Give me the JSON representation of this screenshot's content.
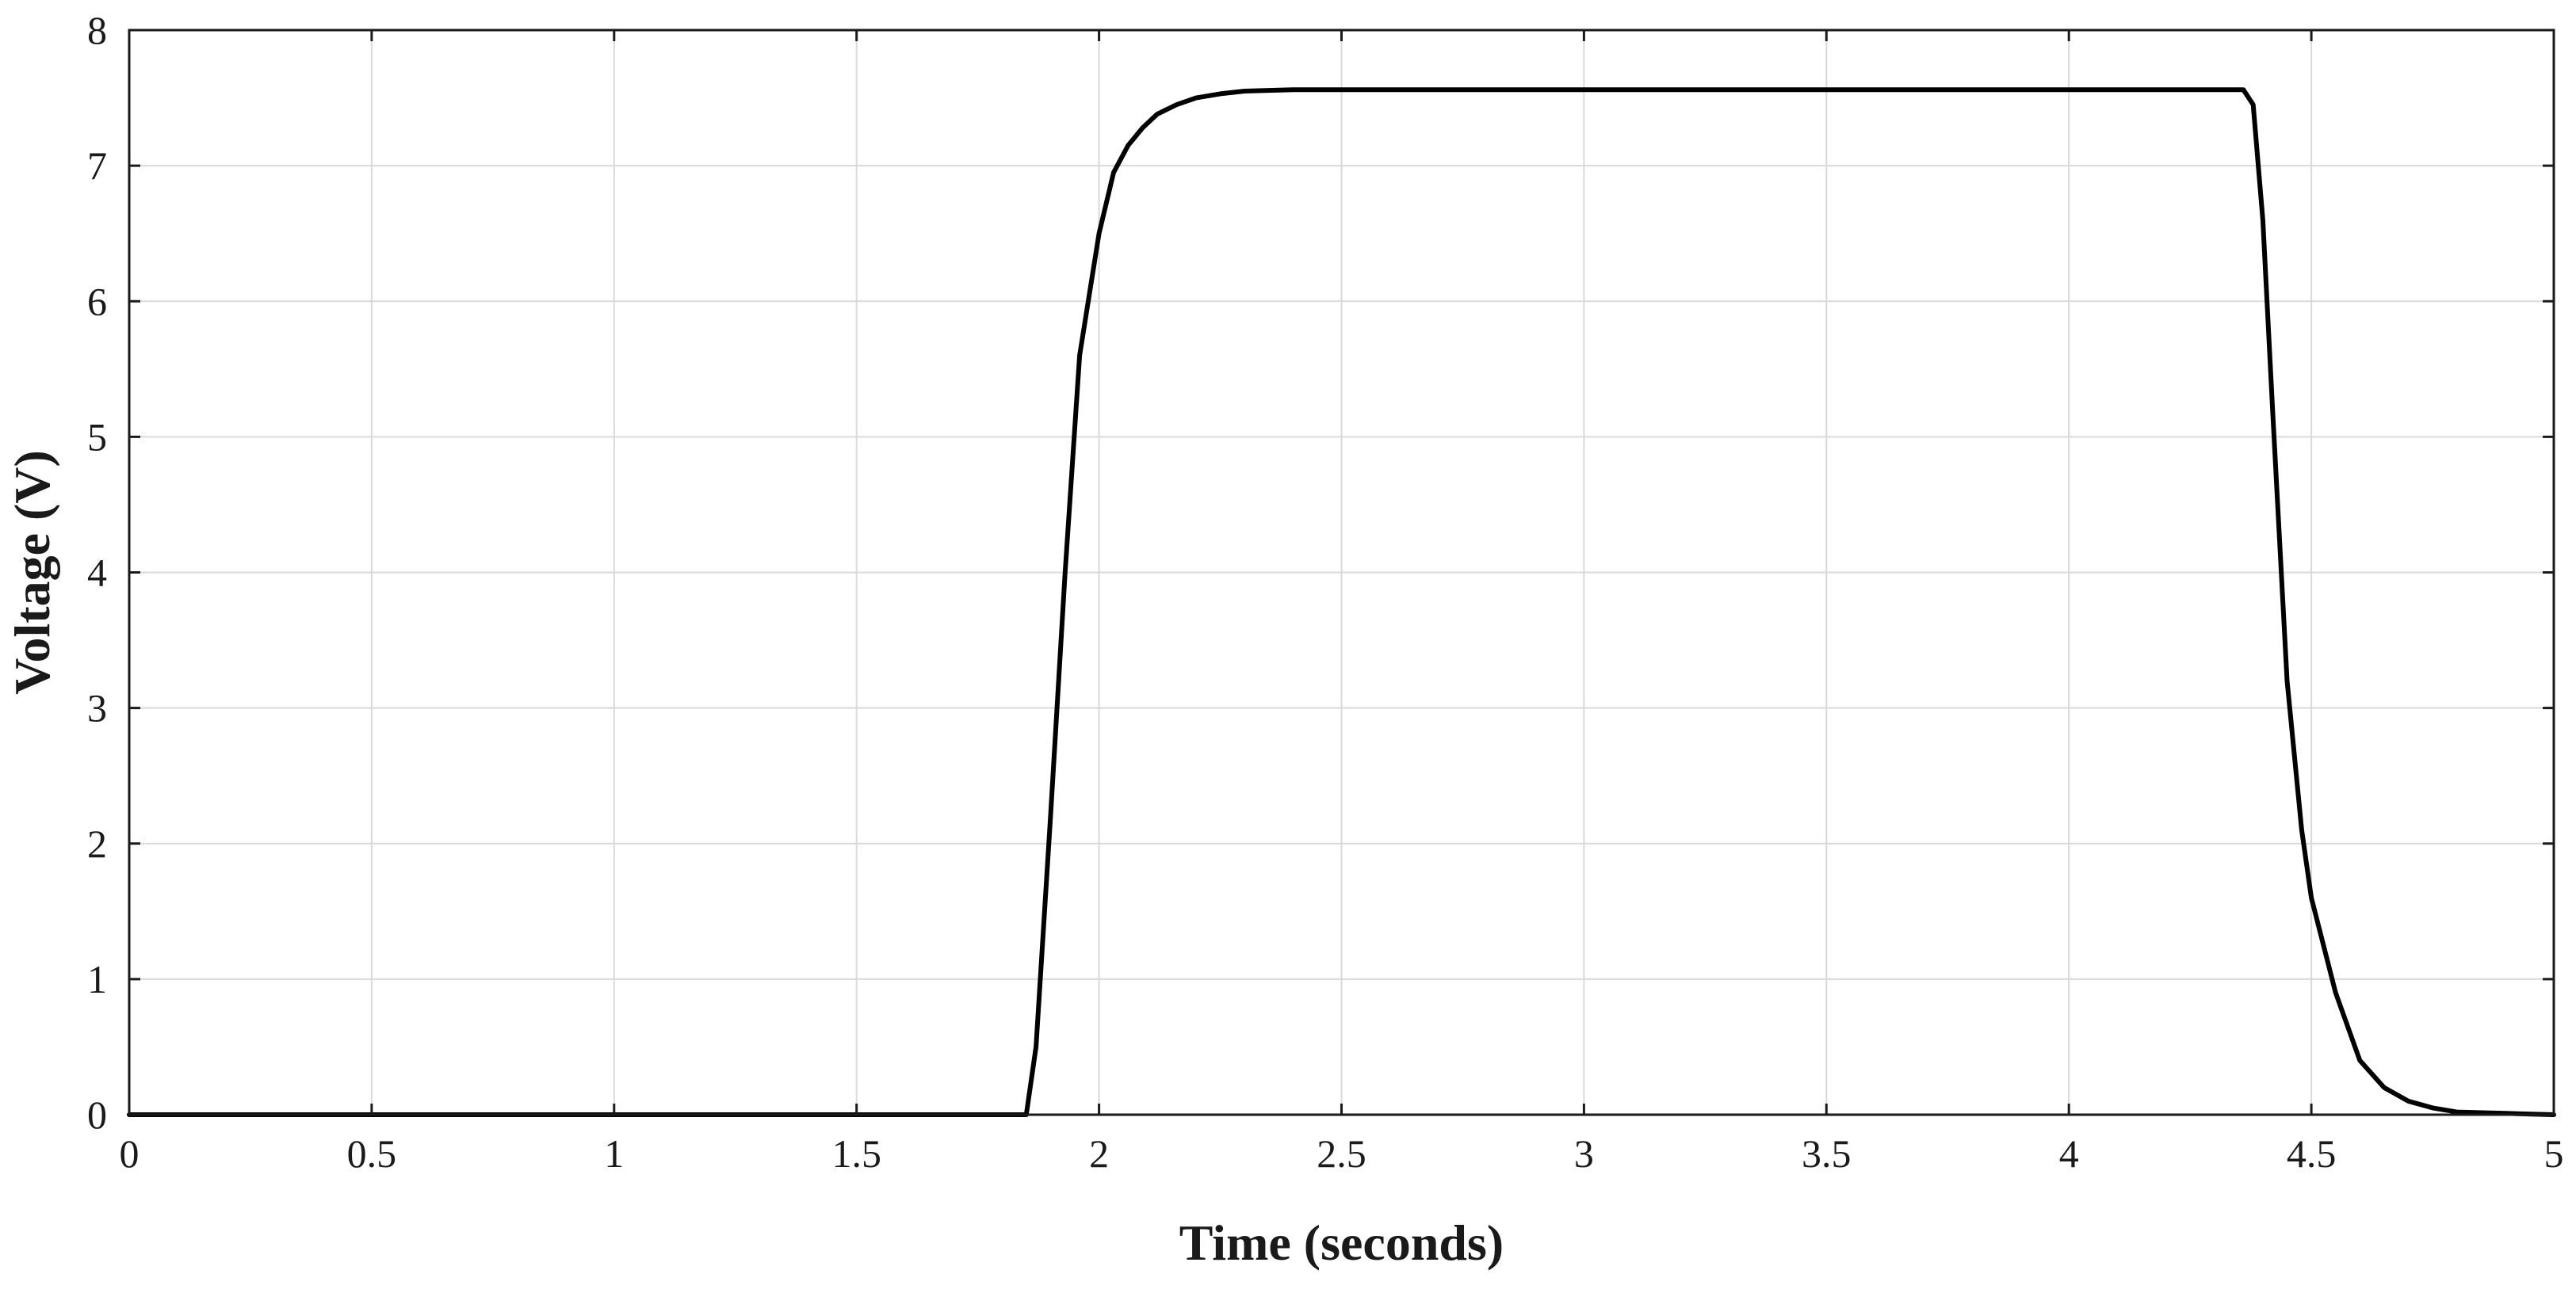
{
  "chart_data": {
    "type": "line",
    "title": "",
    "xlabel": "Time (seconds)",
    "ylabel": "Voltage (V)",
    "xlim": [
      0,
      5
    ],
    "ylim": [
      0,
      8
    ],
    "grid": true,
    "x_ticks": [
      0,
      0.5,
      1,
      1.5,
      2,
      2.5,
      3,
      3.5,
      4,
      4.5,
      5
    ],
    "x_tick_labels": [
      "0",
      "0.5",
      "1",
      "1.5",
      "2",
      "2.5",
      "3",
      "3.5",
      "4",
      "4.5",
      "5"
    ],
    "y_ticks": [
      0,
      1,
      2,
      3,
      4,
      5,
      6,
      7,
      8
    ],
    "y_tick_labels": [
      "0",
      "1",
      "2",
      "3",
      "4",
      "5",
      "6",
      "7",
      "8"
    ],
    "colors": {
      "line": "#000000",
      "grid": "#d9d9d9",
      "axis": "#1a1a1a"
    },
    "series": [
      {
        "x": [
          0,
          0.5,
          1.0,
          1.5,
          1.85,
          1.87,
          1.9,
          1.93,
          1.96,
          2.0,
          2.03,
          2.06,
          2.09,
          2.12,
          2.16,
          2.2,
          2.25,
          2.3,
          2.4,
          2.5,
          3.0,
          3.5,
          4.0,
          4.3,
          4.36,
          4.38,
          4.4,
          4.42,
          4.45,
          4.48,
          4.5,
          4.55,
          4.6,
          4.65,
          4.7,
          4.75,
          4.8,
          4.9,
          5.0
        ],
        "y": [
          0,
          0,
          0,
          0,
          0,
          0.5,
          2.2,
          4.0,
          5.6,
          6.5,
          6.95,
          7.15,
          7.28,
          7.38,
          7.45,
          7.5,
          7.53,
          7.55,
          7.56,
          7.56,
          7.56,
          7.56,
          7.56,
          7.56,
          7.56,
          7.45,
          6.6,
          5.2,
          3.2,
          2.1,
          1.6,
          0.9,
          0.4,
          0.2,
          0.1,
          0.05,
          0.02,
          0.01,
          0.0
        ]
      }
    ]
  }
}
